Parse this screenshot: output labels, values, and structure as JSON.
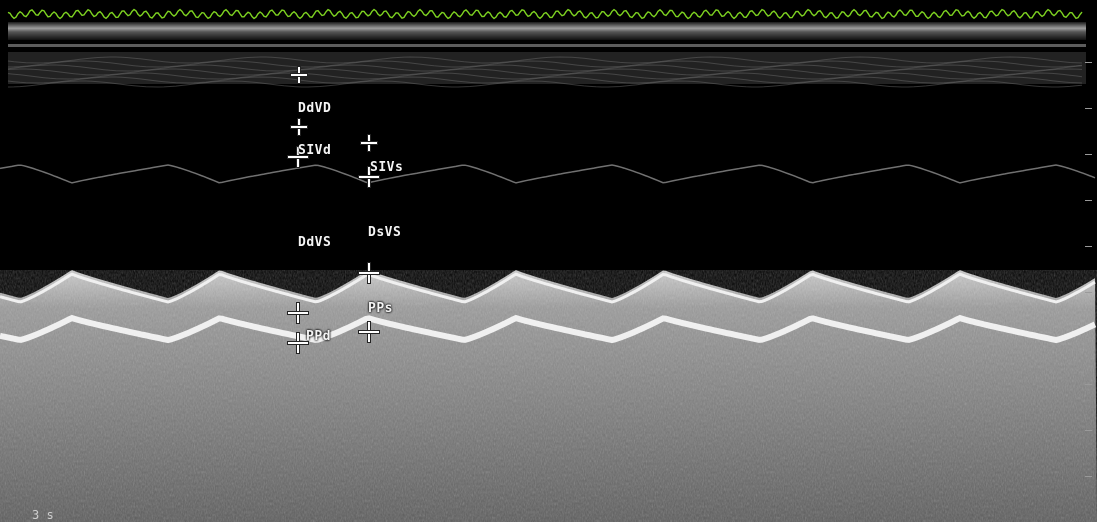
{
  "labels": {
    "ddvd": "DdVD",
    "sivd": "SIVd",
    "sivs": "SIVs",
    "ddvs": "DdVS",
    "dsvs": "DsVS",
    "pps": "PPs",
    "ppd": "PPd"
  },
  "time_scale": "3 s",
  "ecg_color": "#7ed321",
  "tissue_color": "#d8d8d8",
  "caliper_color": "#ffffff",
  "mode": "M-mode"
}
